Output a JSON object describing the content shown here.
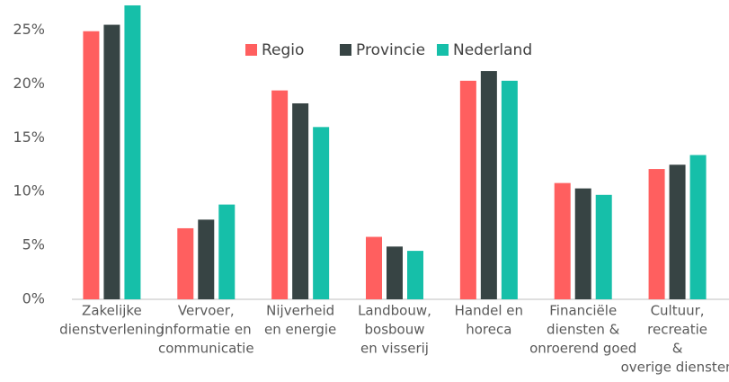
{
  "chart_data": {
    "type": "bar",
    "categories": [
      [
        "Zakelijke",
        "dienstverlening"
      ],
      [
        "Vervoer,",
        "informatie en",
        "communicatie"
      ],
      [
        "Nijverheid",
        "en energie"
      ],
      [
        "Landbouw,",
        "bosbouw",
        "en visserij"
      ],
      [
        "Handel en",
        "horeca"
      ],
      [
        "Financiële",
        "diensten &",
        "onroerend goed"
      ],
      [
        "Cultuur,",
        "recreatie",
        "&",
        "overige diensten"
      ]
    ],
    "series": [
      {
        "name": "Regio",
        "color": "#ff5f5f",
        "values": [
          24.9,
          6.6,
          19.4,
          5.8,
          20.3,
          10.8,
          12.1
        ]
      },
      {
        "name": "Provincie",
        "color": "#374444",
        "values": [
          25.5,
          7.4,
          18.2,
          4.9,
          21.2,
          10.3,
          12.5
        ]
      },
      {
        "name": "Nederland",
        "color": "#16bfa9",
        "values": [
          27.3,
          8.8,
          16.0,
          4.5,
          20.3,
          9.7,
          13.4
        ]
      }
    ],
    "ylim": [
      0,
      27.8
    ],
    "yticks": [
      {
        "value": 0,
        "label": "0%"
      },
      {
        "value": 5,
        "label": "5%"
      },
      {
        "value": 10,
        "label": "10%"
      },
      {
        "value": 15,
        "label": "15%"
      },
      {
        "value": 20,
        "label": "20%"
      },
      {
        "value": 25,
        "label": "25%"
      }
    ],
    "grid": false
  }
}
